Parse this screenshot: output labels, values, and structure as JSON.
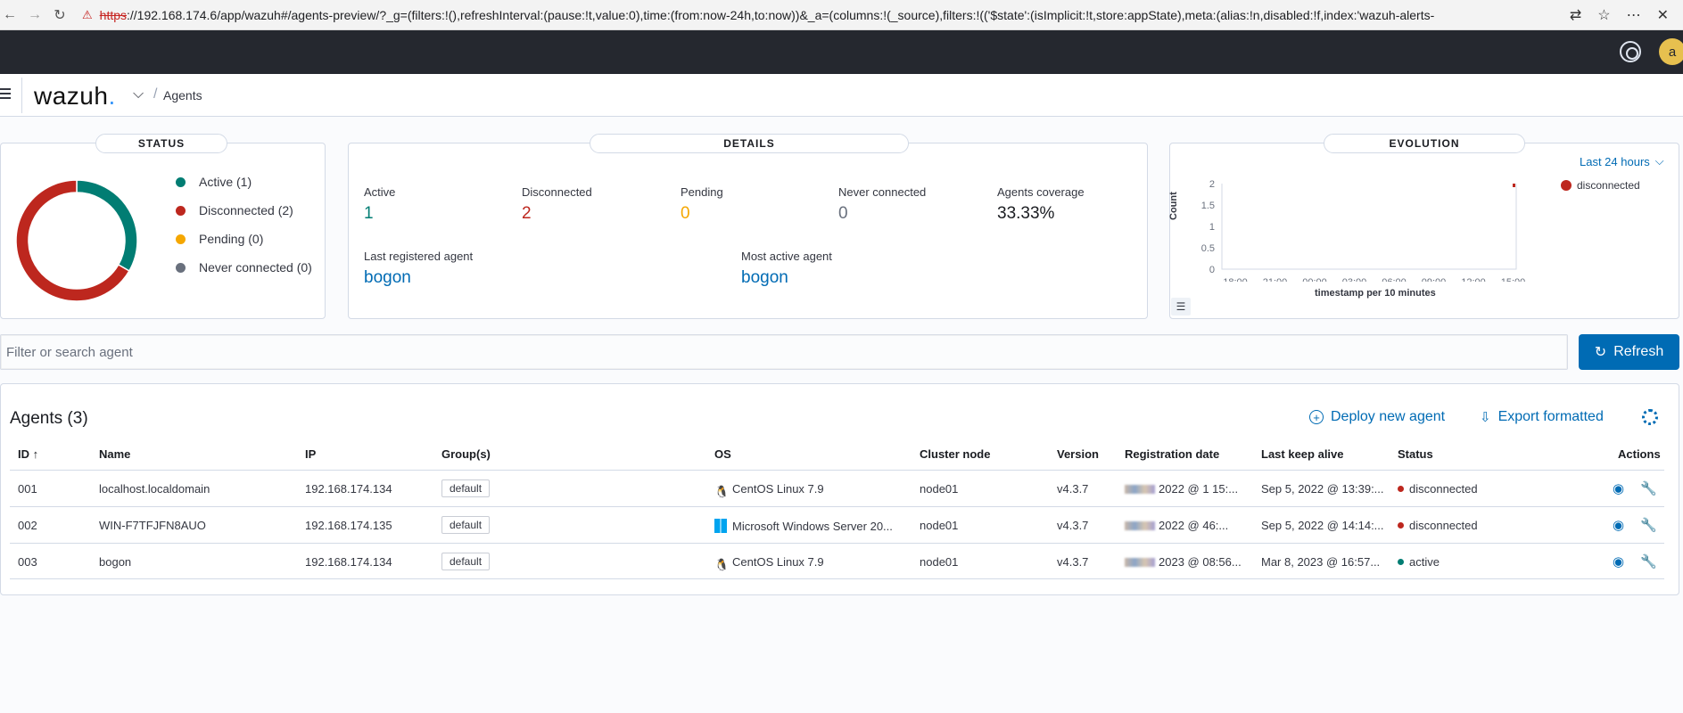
{
  "browser": {
    "url_protocol": "https",
    "url_rest": "://192.168.174.6/app/wazuh#/agents-preview/?_g=(filters:!(),refreshInterval:(pause:!t,value:0),time:(from:now-24h,to:now))&_a=(columns:!(_source),filters:!(('$state':(isImplicit:!t,store:appState),meta:(alias:!n,disabled:!f,index:'wazuh-alerts-"
  },
  "topbar": {
    "avatar_letter": "a"
  },
  "header": {
    "logo_text": "wazuh",
    "logo_dot": ".",
    "breadcrumb": "Agents"
  },
  "status": {
    "title": "STATUS",
    "legend": [
      {
        "label": "Active (1)",
        "color": "#017d73"
      },
      {
        "label": "Disconnected (2)",
        "color": "#bd271e"
      },
      {
        "label": "Pending (0)",
        "color": "#f5a700"
      },
      {
        "label": "Never connected (0)",
        "color": "#69707d"
      }
    ],
    "donut": {
      "active": 1,
      "disconnected": 2,
      "pending": 0,
      "never_connected": 0
    }
  },
  "details": {
    "title": "DETAILS",
    "active_label": "Active",
    "active_value": "1",
    "disconnected_label": "Disconnected",
    "disconnected_value": "2",
    "pending_label": "Pending",
    "pending_value": "0",
    "never_label": "Never connected",
    "never_value": "0",
    "coverage_label": "Agents coverage",
    "coverage_value": "33.33%",
    "last_registered_label": "Last registered agent",
    "last_registered_value": "bogon",
    "most_active_label": "Most active agent",
    "most_active_value": "bogon"
  },
  "evolution": {
    "title": "EVOLUTION",
    "range": "Last 24 hours",
    "legend": "disconnected",
    "y_label": "Count",
    "x_label": "timestamp per 10 minutes",
    "y_ticks": [
      "2",
      "1.5",
      "1",
      "0.5",
      "0"
    ],
    "x_ticks": [
      "18:00",
      "21:00",
      "00:00",
      "03:00",
      "06:00",
      "09:00",
      "12:00",
      "15:00"
    ]
  },
  "search": {
    "placeholder": "Filter or search agent"
  },
  "refresh_label": "Refresh",
  "table": {
    "title": "Agents (3)",
    "deploy_label": "Deploy new agent",
    "export_label": "Export formatted",
    "columns": [
      "ID",
      "Name",
      "IP",
      "Group(s)",
      "OS",
      "Cluster node",
      "Version",
      "Registration date",
      "Last keep alive",
      "Status",
      "Actions"
    ],
    "rows": [
      {
        "id": "001",
        "name": "localhost.localdomain",
        "ip": "192.168.174.134",
        "group": "default",
        "os": "CentOS Linux 7.9",
        "os_type": "linux",
        "node": "node01",
        "version": "v4.3.7",
        "reg": "2022 @ 1 15:...",
        "alive": "Sep 5, 2022 @ 13:39:...",
        "status": "disconnected"
      },
      {
        "id": "002",
        "name": "WIN-F7TFJFN8AUO",
        "ip": "192.168.174.135",
        "group": "default",
        "os": "Microsoft Windows Server 20...",
        "os_type": "windows",
        "node": "node01",
        "version": "v4.3.7",
        "reg": "2022 @ 46:...",
        "alive": "Sep 5, 2022 @ 14:14:...",
        "status": "disconnected"
      },
      {
        "id": "003",
        "name": "bogon",
        "ip": "192.168.174.134",
        "group": "default",
        "os": "CentOS Linux 7.9",
        "os_type": "linux",
        "node": "node01",
        "version": "v4.3.7",
        "reg": "2023 @ 08:56...",
        "alive": "Mar 8, 2023 @ 16:57...",
        "status": "active"
      }
    ]
  },
  "colors": {
    "active": "#017d73",
    "disconnected": "#bd271e",
    "pending": "#f5a700",
    "never": "#69707d",
    "link": "#006bb4"
  }
}
